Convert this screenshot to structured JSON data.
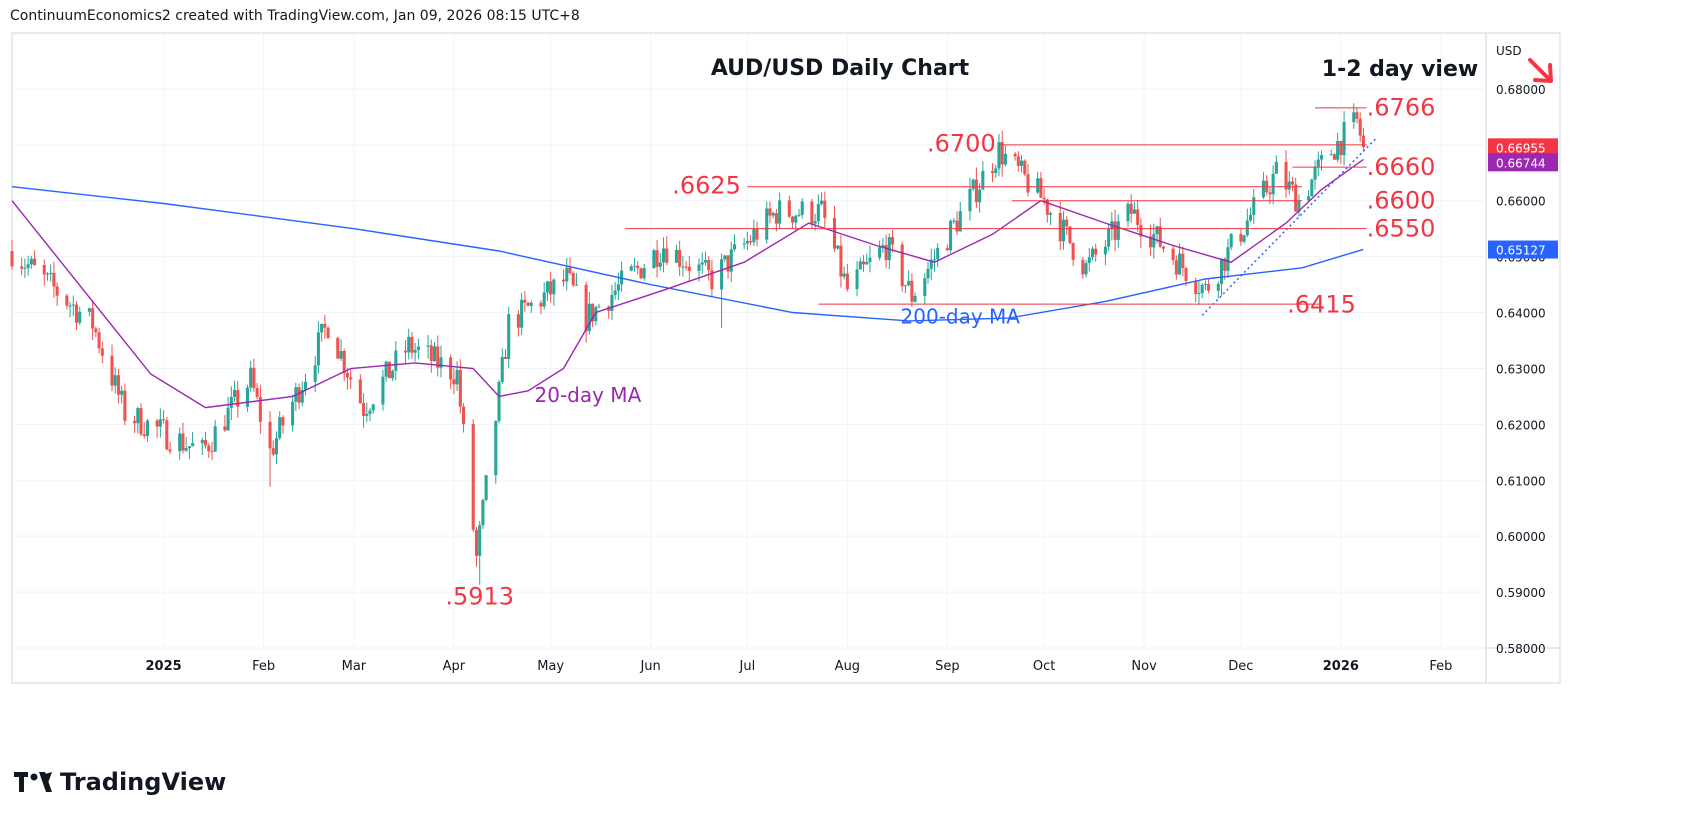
{
  "header": {
    "credit": "ContinuumEconomics2 created with TradingView.com, Jan 09, 2026 08:15 UTC+8"
  },
  "footer": {
    "brand": "TradingView"
  },
  "colors": {
    "up": "#26a69a",
    "down": "#ef5350",
    "ma20": "#9c27b0",
    "ma200": "#2962ff",
    "level": "#f23645",
    "accent": "#f23645"
  },
  "chart_data": {
    "type": "candlestick",
    "title": "AUD/USD Daily Chart",
    "view_label": "1-2 day view",
    "view_icon": "arrow-down-right-icon",
    "currency": "USD",
    "y_ticks": [
      "0.68000",
      "0.67000",
      "0.66000",
      "0.65000",
      "0.64000",
      "0.63000",
      "0.62000",
      "0.61000",
      "0.60000",
      "0.59000",
      "0.58000"
    ],
    "y_range": [
      0.58,
      0.69
    ],
    "x_ticks": [
      {
        "label": "2025",
        "date": "2025-01-01",
        "bold": true
      },
      {
        "label": "Feb",
        "date": "2025-02-01"
      },
      {
        "label": "Mar",
        "date": "2025-03-01"
      },
      {
        "label": "Apr",
        "date": "2025-04-01"
      },
      {
        "label": "May",
        "date": "2025-05-01"
      },
      {
        "label": "Jun",
        "date": "2025-06-01"
      },
      {
        "label": "Jul",
        "date": "2025-07-01"
      },
      {
        "label": "Aug",
        "date": "2025-08-01"
      },
      {
        "label": "Sep",
        "date": "2025-09-01"
      },
      {
        "label": "Oct",
        "date": "2025-10-01"
      },
      {
        "label": "Nov",
        "date": "2025-11-01"
      },
      {
        "label": "Dec",
        "date": "2025-12-01"
      },
      {
        "label": "2026",
        "date": "2026-01-01",
        "bold": true
      },
      {
        "label": "Feb",
        "date": "2026-02-01"
      }
    ],
    "x_range": [
      "2024-11-15",
      "2026-02-15"
    ],
    "price_anchors": [
      {
        "date": "2024-11-15",
        "price": 0.651
      },
      {
        "date": "2024-12-10",
        "price": 0.638
      },
      {
        "date": "2024-12-20",
        "price": 0.622
      },
      {
        "date": "2025-01-13",
        "price": 0.615
      },
      {
        "date": "2025-01-28",
        "price": 0.628
      },
      {
        "date": "2025-02-03",
        "price": 0.615
      },
      {
        "date": "2025-02-21",
        "price": 0.638
      },
      {
        "date": "2025-03-04",
        "price": 0.623
      },
      {
        "date": "2025-03-18",
        "price": 0.634
      },
      {
        "date": "2025-04-02",
        "price": 0.629
      },
      {
        "date": "2025-04-08",
        "price": 0.596
      },
      {
        "date": "2025-04-18",
        "price": 0.638
      },
      {
        "date": "2025-05-06",
        "price": 0.646
      },
      {
        "date": "2025-05-12",
        "price": 0.639
      },
      {
        "date": "2025-06-05",
        "price": 0.652
      },
      {
        "date": "2025-06-20",
        "price": 0.646
      },
      {
        "date": "2025-07-10",
        "price": 0.658
      },
      {
        "date": "2025-07-24",
        "price": 0.658
      },
      {
        "date": "2025-08-01",
        "price": 0.644
      },
      {
        "date": "2025-08-13",
        "price": 0.652
      },
      {
        "date": "2025-08-21",
        "price": 0.643
      },
      {
        "date": "2025-09-17",
        "price": 0.669
      },
      {
        "date": "2025-10-01",
        "price": 0.66
      },
      {
        "date": "2025-10-14",
        "price": 0.648
      },
      {
        "date": "2025-10-28",
        "price": 0.658
      },
      {
        "date": "2025-11-20",
        "price": 0.644
      },
      {
        "date": "2025-12-12",
        "price": 0.665
      },
      {
        "date": "2025-12-19",
        "price": 0.66
      },
      {
        "date": "2025-12-29",
        "price": 0.669
      },
      {
        "date": "2026-01-06",
        "price": 0.674
      },
      {
        "date": "2026-01-08",
        "price": 0.6696
      }
    ],
    "spikes": [
      {
        "date": "2025-02-03",
        "low": 0.6088
      },
      {
        "date": "2025-04-09",
        "low": 0.5913
      },
      {
        "date": "2025-06-23",
        "low": 0.6372
      },
      {
        "date": "2026-01-06",
        "high": 0.6766
      }
    ],
    "levels": [
      {
        "label": ".6766",
        "price": 0.6766,
        "from": "2025-12-24",
        "to": "2026-01-09",
        "label_date": "2026-01-09",
        "label_price": 0.6752
      },
      {
        "label": ".6700",
        "price": 0.67,
        "from": "2025-09-17",
        "to": "2026-01-09",
        "label_date": "2025-09-16",
        "label_price": 0.6688
      },
      {
        "label": ".6660",
        "price": 0.666,
        "from": "2025-12-17",
        "to": "2026-01-09",
        "label_date": "2026-01-09",
        "label_price": 0.6646
      },
      {
        "label": ".6625",
        "price": 0.6625,
        "from": "2025-07-01",
        "to": "2025-12-20",
        "label_date": "2025-06-29",
        "label_price": 0.6613
      },
      {
        "label": ".6600",
        "price": 0.66,
        "from": "2025-09-21",
        "to": "2025-12-20",
        "label_date": "2026-01-09",
        "label_price": 0.6586
      },
      {
        "label": ".6550",
        "price": 0.655,
        "from": "2025-05-24",
        "to": "2026-01-09",
        "label_date": "2026-01-09",
        "label_price": 0.6536
      },
      {
        "label": ".6415",
        "price": 0.6415,
        "from": "2025-07-23",
        "to": "2025-12-26",
        "label_date": "2025-12-26",
        "label_price": 0.64
      },
      {
        "label": ".5913",
        "price": 0.5913,
        "from": null,
        "to": null,
        "label_date": "2025-04-09",
        "label_price": 0.5878
      }
    ],
    "trendline": [
      {
        "date": "2025-11-19",
        "price": 0.6395
      },
      {
        "date": "2026-01-12",
        "price": 0.6712
      }
    ],
    "ma20": {
      "label": "20-day MA",
      "label_date": "2025-04-26",
      "label_price": 0.624,
      "points": [
        {
          "date": "2024-11-15",
          "price": 0.66
        },
        {
          "date": "2024-12-10",
          "price": 0.642
        },
        {
          "date": "2024-12-28",
          "price": 0.629
        },
        {
          "date": "2025-01-14",
          "price": 0.623
        },
        {
          "date": "2025-02-10",
          "price": 0.625
        },
        {
          "date": "2025-02-28",
          "price": 0.63
        },
        {
          "date": "2025-03-20",
          "price": 0.631
        },
        {
          "date": "2025-04-07",
          "price": 0.63
        },
        {
          "date": "2025-04-15",
          "price": 0.625
        },
        {
          "date": "2025-04-24",
          "price": 0.626
        },
        {
          "date": "2025-05-05",
          "price": 0.63
        },
        {
          "date": "2025-05-15",
          "price": 0.64
        },
        {
          "date": "2025-06-05",
          "price": 0.644
        },
        {
          "date": "2025-06-30",
          "price": 0.649
        },
        {
          "date": "2025-07-20",
          "price": 0.656
        },
        {
          "date": "2025-08-10",
          "price": 0.652
        },
        {
          "date": "2025-08-28",
          "price": 0.649
        },
        {
          "date": "2025-09-15",
          "price": 0.654
        },
        {
          "date": "2025-09-30",
          "price": 0.66
        },
        {
          "date": "2025-10-20",
          "price": 0.656
        },
        {
          "date": "2025-11-10",
          "price": 0.652
        },
        {
          "date": "2025-11-28",
          "price": 0.649
        },
        {
          "date": "2025-12-15",
          "price": 0.656
        },
        {
          "date": "2025-12-26",
          "price": 0.662
        },
        {
          "date": "2026-01-08",
          "price": 0.6674
        }
      ]
    },
    "ma200": {
      "label": "200-day MA",
      "label_date": "2025-09-05",
      "label_price": 0.638,
      "points": [
        {
          "date": "2024-11-15",
          "price": 0.6625
        },
        {
          "date": "2025-01-01",
          "price": 0.6595
        },
        {
          "date": "2025-03-01",
          "price": 0.655
        },
        {
          "date": "2025-04-15",
          "price": 0.651
        },
        {
          "date": "2025-06-01",
          "price": 0.645
        },
        {
          "date": "2025-07-15",
          "price": 0.64
        },
        {
          "date": "2025-08-20",
          "price": 0.6385
        },
        {
          "date": "2025-09-20",
          "price": 0.639
        },
        {
          "date": "2025-10-20",
          "price": 0.642
        },
        {
          "date": "2025-11-20",
          "price": 0.646
        },
        {
          "date": "2025-12-20",
          "price": 0.648
        },
        {
          "date": "2026-01-08",
          "price": 0.6513
        }
      ]
    },
    "price_tags": [
      {
        "label": "0.66955",
        "price": 0.66955,
        "color": "#f23645"
      },
      {
        "label": "0.66744",
        "price": 0.66744,
        "color": "#9c27b0"
      },
      {
        "label": "0.65127",
        "price": 0.65127,
        "color": "#2962ff"
      }
    ]
  }
}
